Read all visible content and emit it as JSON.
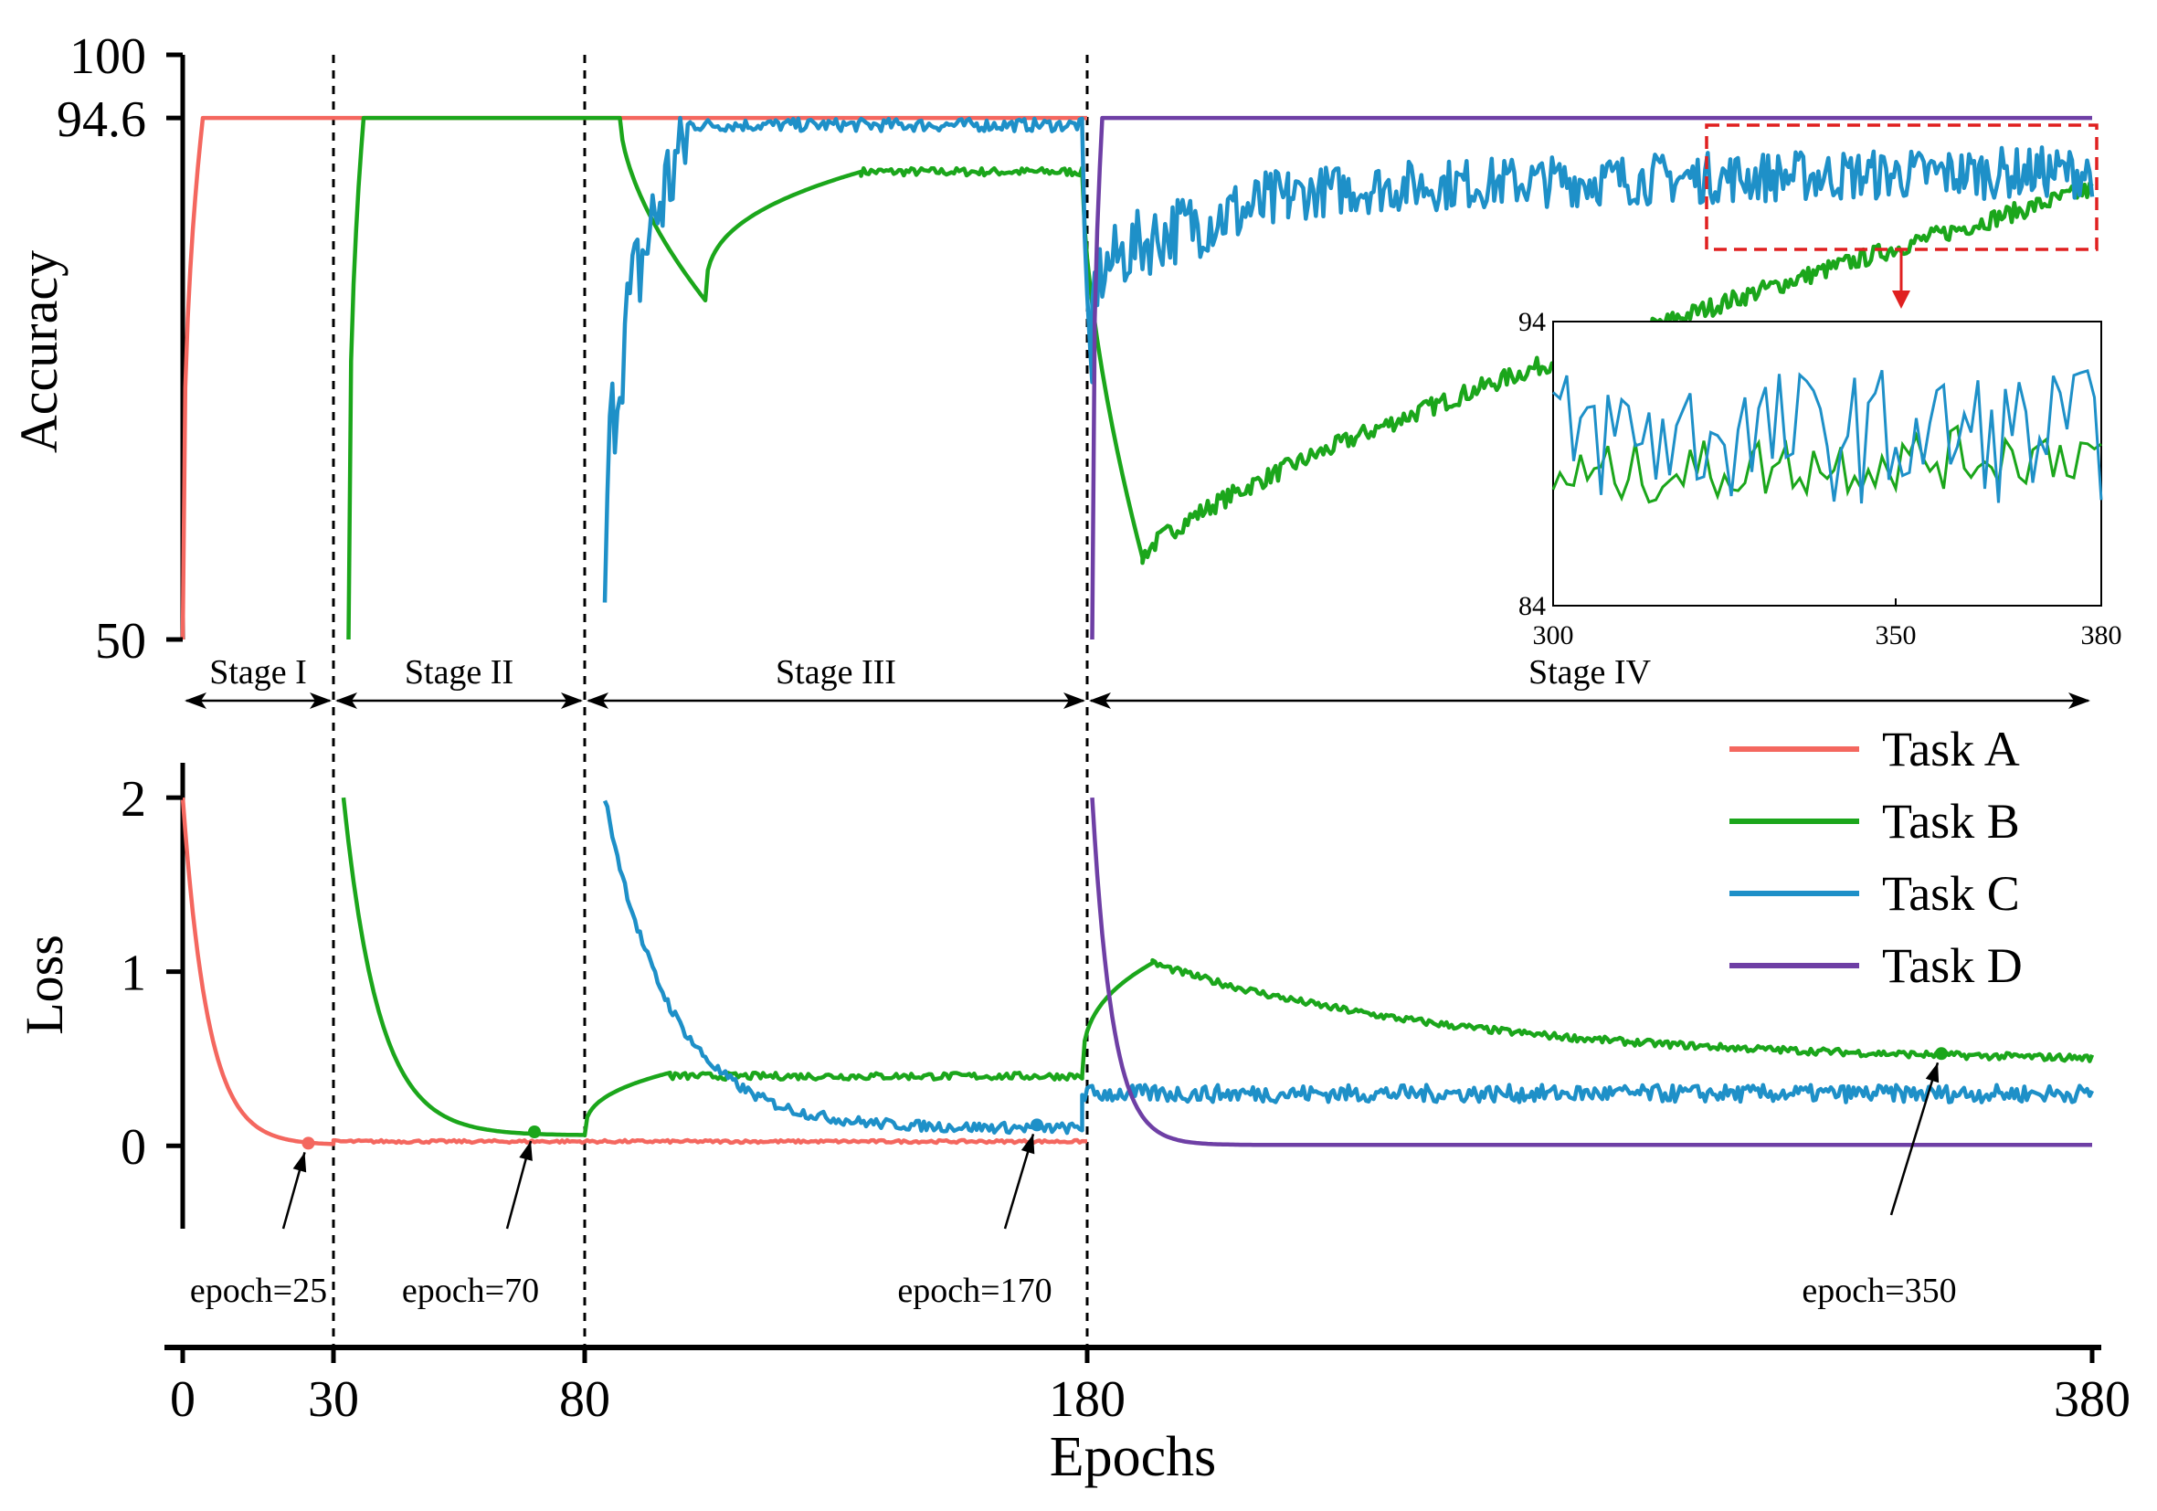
{
  "colors": {
    "task_a": "#F4675F",
    "task_b": "#1BA61B",
    "task_c": "#1E90C8",
    "task_d": "#6E3FA5",
    "highlight": "#E02020",
    "axis": "#000000"
  },
  "chart_data": {
    "type": "line",
    "xlabel": "Epochs",
    "x_ticks": [
      "0",
      "30",
      "80",
      "180",
      "380"
    ],
    "xlim": [
      0,
      380
    ],
    "stage_boundaries": [
      30,
      80,
      180
    ],
    "stages": [
      {
        "label": "Stage I",
        "from": 0,
        "to": 30
      },
      {
        "label": "Stage II",
        "from": 30,
        "to": 80
      },
      {
        "label": "Stage III",
        "from": 80,
        "to": 180
      },
      {
        "label": "Stage IV",
        "from": 180,
        "to": 380
      }
    ],
    "legend": {
      "position": "right",
      "entries": [
        "Task A",
        "Task B",
        "Task C",
        "Task D"
      ]
    },
    "accuracy_panel": {
      "ylabel": "Accuracy",
      "y_ticks": [
        "100",
        "94.6",
        "50"
      ],
      "ylim": [
        50,
        100
      ],
      "series": [
        {
          "name": "Task A",
          "color_key": "task_a",
          "segments": [
            {
              "type": "rise",
              "x0": 0,
              "x1": 4,
              "from": 50,
              "to": 94.6
            },
            {
              "type": "flat",
              "x0": 4,
              "x1": 180,
              "value": 94.6
            }
          ]
        },
        {
          "name": "Task B",
          "color_key": "task_b",
          "segments": [
            {
              "type": "rise",
              "x0": 33,
              "x1": 36,
              "from": 50,
              "to": 94.6
            },
            {
              "type": "flat",
              "x0": 36,
              "x1": 87,
              "value": 94.6
            },
            {
              "type": "drop",
              "x0": 87,
              "x1": 104,
              "from": 94.6,
              "to": 79
            },
            {
              "type": "rise",
              "x0": 104,
              "x1": 135,
              "from": 79,
              "to": 90.0
            },
            {
              "type": "flat",
              "x0": 135,
              "x1": 179,
              "value": 90.0,
              "noise": 0.35
            },
            {
              "type": "drop",
              "x0": 179,
              "x1": 191,
              "from": 90.0,
              "to": 57
            },
            {
              "type": "rise",
              "x0": 191,
              "x1": 380,
              "from": 57,
              "to": 88.5,
              "curve": 0.75,
              "noise": 0.8
            }
          ]
        },
        {
          "name": "Task C",
          "color_key": "task_c",
          "segments": [
            {
              "type": "rise",
              "x0": 84,
              "x1": 101,
              "from": 50,
              "to": 93.5,
              "noise": 5
            },
            {
              "type": "flat",
              "x0": 101,
              "x1": 179,
              "value": 94.0,
              "noise": 0.55
            },
            {
              "type": "drop",
              "x0": 179,
              "x1": 181,
              "from": 94.0,
              "to": 72
            },
            {
              "type": "rise",
              "x0": 181,
              "x1": 220,
              "from": 78,
              "to": 87.5,
              "noise": 3
            },
            {
              "type": "rise",
              "x0": 220,
              "x1": 380,
              "from": 87.5,
              "to": 90.0,
              "noise": 2.2
            }
          ]
        },
        {
          "name": "Task D",
          "color_key": "task_d",
          "segments": [
            {
              "type": "rise",
              "x0": 181,
              "x1": 183,
              "from": 50,
              "to": 94.6
            },
            {
              "type": "flat",
              "x0": 183,
              "x1": 380,
              "value": 94.6
            }
          ]
        }
      ]
    },
    "zoom_inset": {
      "x_ticks": [
        "300",
        "350",
        "380"
      ],
      "y_ticks": [
        "94",
        "84"
      ],
      "xlim": [
        300,
        380
      ],
      "ylim": [
        84,
        94
      ],
      "series": [
        {
          "name": "Task B",
          "color_key": "task_b",
          "mean": 88.5,
          "noise": 1.1
        },
        {
          "name": "Task C",
          "color_key": "task_c",
          "mean": 90.0,
          "noise": 2.4
        }
      ]
    },
    "loss_panel": {
      "ylabel": "Loss",
      "y_ticks": [
        "2",
        "1",
        "0"
      ],
      "ylim": [
        -0.45,
        2.2
      ],
      "series": [
        {
          "name": "Task A",
          "color_key": "task_a",
          "segments": [
            {
              "type": "decay",
              "x0": 0,
              "x1": 30,
              "from": 2.0,
              "to": 0.005,
              "tau": 5
            },
            {
              "type": "flat",
              "x0": 30,
              "x1": 180,
              "value": 0.025,
              "noise": 0.008
            }
          ]
        },
        {
          "name": "Task B",
          "color_key": "task_b",
          "segments": [
            {
              "type": "decay",
              "x0": 32,
              "x1": 80,
              "from": 2.0,
              "to": 0.06,
              "tau": 7
            },
            {
              "type": "rise",
              "x0": 80,
              "x1": 97,
              "from": 0.06,
              "to": 0.42
            },
            {
              "type": "flat",
              "x0": 97,
              "x1": 179,
              "value": 0.4,
              "noise": 0.02
            },
            {
              "type": "rise",
              "x0": 179,
              "x1": 193,
              "from": 0.4,
              "to": 1.05
            },
            {
              "type": "decay",
              "x0": 193,
              "x1": 380,
              "from": 1.05,
              "to": 0.48,
              "tau": 60,
              "noise": 0.02
            }
          ]
        },
        {
          "name": "Task C",
          "color_key": "task_c",
          "segments": [
            {
              "type": "decay",
              "x0": 84,
              "x1": 179,
              "from": 2.0,
              "to": 0.1,
              "tau": 13,
              "noise": 0.03
            },
            {
              "type": "flat",
              "x0": 179,
              "x1": 380,
              "value": 0.3,
              "noise": 0.05
            }
          ]
        },
        {
          "name": "Task D",
          "color_key": "task_d",
          "segments": [
            {
              "type": "decay",
              "x0": 181,
              "x1": 380,
              "from": 2.0,
              "to": 0.005,
              "tau": 4
            }
          ]
        }
      ],
      "annotations": [
        {
          "label": "epoch=25",
          "x": 25,
          "y": 0.015,
          "color_key": "task_a"
        },
        {
          "label": "epoch=70",
          "x": 70,
          "y": 0.08,
          "color_key": "task_b"
        },
        {
          "label": "epoch=170",
          "x": 170,
          "y": 0.12,
          "color_key": "task_c"
        },
        {
          "label": "epoch=350",
          "x": 350,
          "y": 0.53,
          "color_key": "task_b"
        }
      ]
    }
  }
}
